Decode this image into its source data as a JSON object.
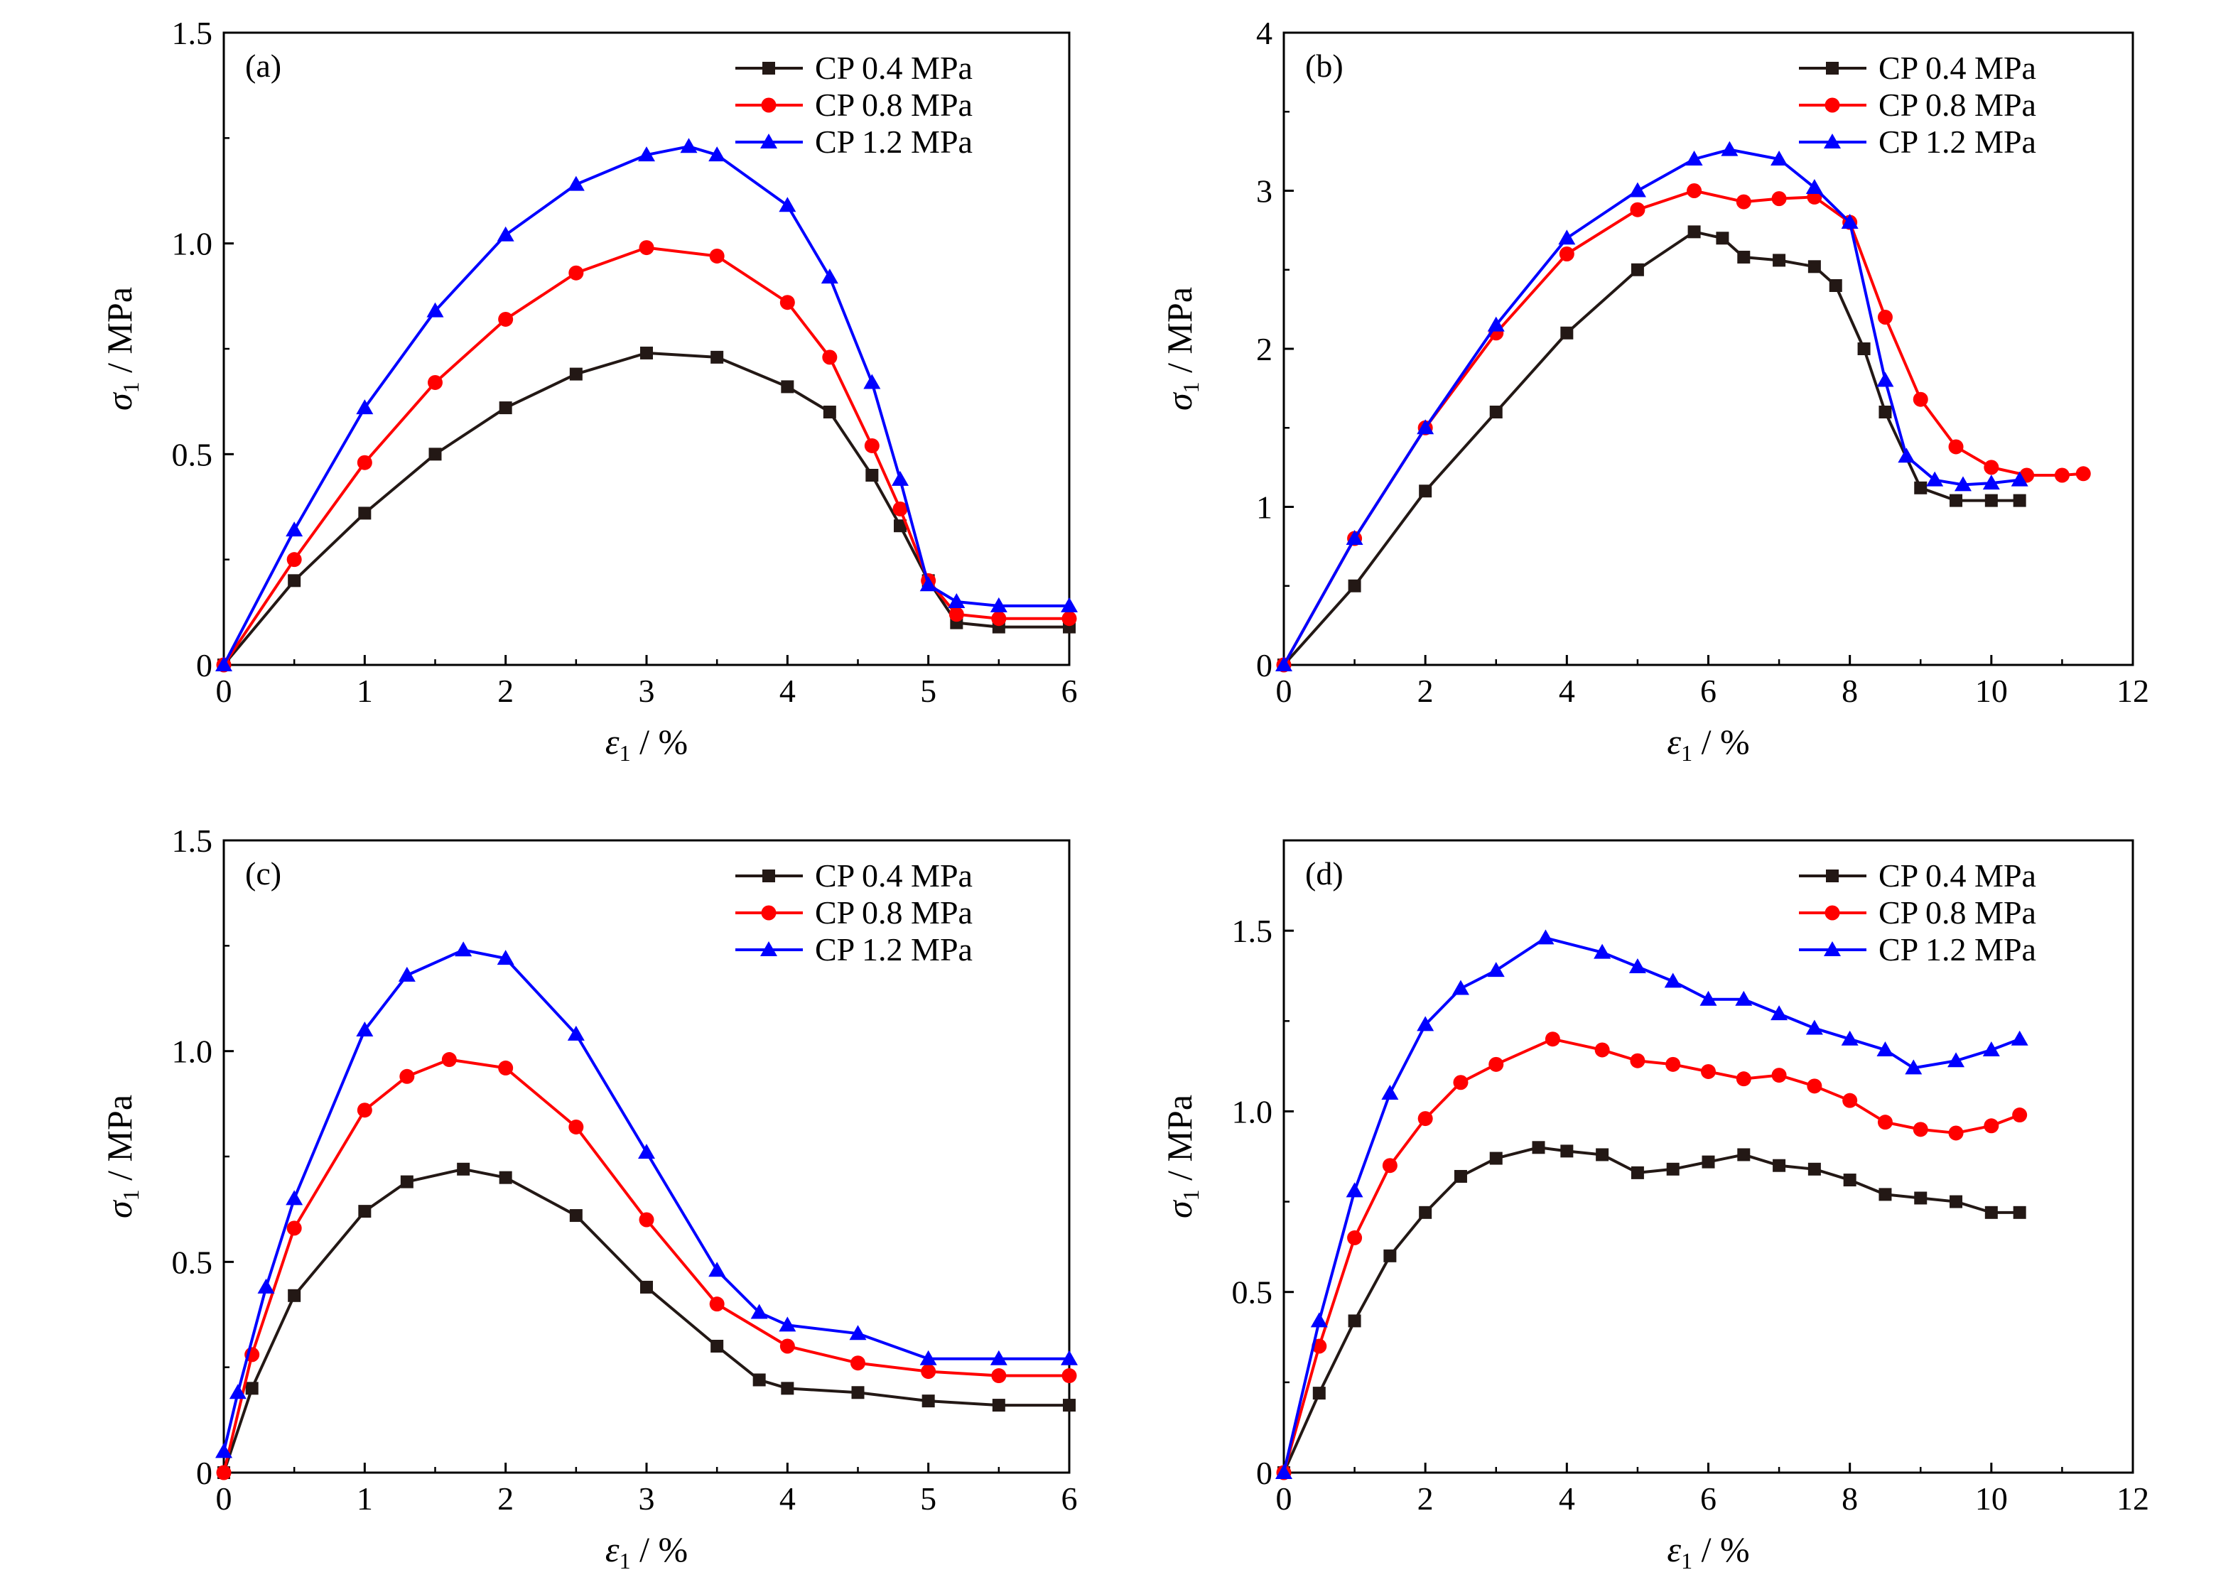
{
  "figure": {
    "background": "#ffffff"
  },
  "series_styles": [
    {
      "name": "CP 0.4 MPa",
      "color": "#231815",
      "marker": "square"
    },
    {
      "name": "CP 0.8 MPa",
      "color": "#ff0000",
      "marker": "circle"
    },
    {
      "name": "CP 1.2 MPa",
      "color": "#0000ff",
      "marker": "triangle"
    }
  ],
  "chart_data": [
    {
      "type": "line",
      "panel": "(a)",
      "xlabel": {
        "symbol": "ε",
        "sub": "1",
        "unit": " / %"
      },
      "ylabel": {
        "symbol": "σ",
        "sub": "1",
        "unit": " / MPa"
      },
      "xlim": [
        0,
        6
      ],
      "ylim": [
        0,
        1.5
      ],
      "xticks": [
        0,
        1,
        2,
        3,
        4,
        5,
        6
      ],
      "xtick_labels": [
        "0",
        "1",
        "2",
        "3",
        "4",
        "5",
        "6"
      ],
      "yticks": [
        0,
        0.5,
        1.0,
        1.5
      ],
      "ytick_labels": [
        "0",
        "0.5",
        "1.0",
        "1.5"
      ],
      "legend": "top-right",
      "grid": false,
      "series": [
        {
          "name": "CP 0.4 MPa",
          "x": [
            0,
            0.5,
            1,
            1.5,
            2,
            2.5,
            3,
            3.5,
            4,
            4.3,
            4.6,
            4.8,
            5,
            5.2,
            5.5,
            6
          ],
          "y": [
            0,
            0.2,
            0.36,
            0.5,
            0.61,
            0.69,
            0.74,
            0.73,
            0.66,
            0.6,
            0.45,
            0.33,
            0.2,
            0.1,
            0.09,
            0.09
          ]
        },
        {
          "name": "CP 0.8 MPa",
          "x": [
            0,
            0.5,
            1,
            1.5,
            2,
            2.5,
            3,
            3.5,
            4,
            4.3,
            4.6,
            4.8,
            5,
            5.2,
            5.5,
            6
          ],
          "y": [
            0,
            0.25,
            0.48,
            0.67,
            0.82,
            0.93,
            0.99,
            0.97,
            0.86,
            0.73,
            0.52,
            0.37,
            0.2,
            0.12,
            0.11,
            0.11
          ]
        },
        {
          "name": "CP 1.2 MPa",
          "x": [
            0,
            0.5,
            1,
            1.5,
            2,
            2.5,
            3,
            3.3,
            3.5,
            4,
            4.3,
            4.6,
            4.8,
            5,
            5.2,
            5.5,
            6
          ],
          "y": [
            0,
            0.32,
            0.61,
            0.84,
            1.02,
            1.14,
            1.21,
            1.23,
            1.21,
            1.09,
            0.92,
            0.67,
            0.44,
            0.19,
            0.15,
            0.14,
            0.14
          ]
        }
      ]
    },
    {
      "type": "line",
      "panel": "(b)",
      "xlabel": {
        "symbol": "ε",
        "sub": "1",
        "unit": " / %"
      },
      "ylabel": {
        "symbol": "σ",
        "sub": "1",
        "unit": " / MPa"
      },
      "xlim": [
        0,
        12
      ],
      "ylim": [
        0,
        4
      ],
      "xticks": [
        0,
        2,
        4,
        6,
        8,
        10,
        12
      ],
      "xtick_labels": [
        "0",
        "2",
        "4",
        "6",
        "8",
        "10",
        "12"
      ],
      "yticks": [
        0,
        1,
        2,
        3,
        4
      ],
      "ytick_labels": [
        "0",
        "1",
        "2",
        "3",
        "4"
      ],
      "legend": "top-right",
      "grid": false,
      "series": [
        {
          "name": "CP 0.4 MPa",
          "x": [
            0,
            1,
            2,
            3,
            4,
            5,
            5.8,
            6.2,
            6.5,
            7,
            7.5,
            7.8,
            8.2,
            8.5,
            9,
            9.5,
            10,
            10.4
          ],
          "y": [
            0,
            0.5,
            1.1,
            1.6,
            2.1,
            2.5,
            2.74,
            2.7,
            2.58,
            2.56,
            2.52,
            2.4,
            2.0,
            1.6,
            1.12,
            1.04,
            1.04,
            1.04
          ]
        },
        {
          "name": "CP 0.8 MPa",
          "x": [
            0,
            1,
            2,
            3,
            4,
            5,
            5.8,
            6.5,
            7,
            7.5,
            8,
            8.5,
            9,
            9.5,
            10,
            10.5,
            11,
            11.3
          ],
          "y": [
            0,
            0.8,
            1.5,
            2.1,
            2.6,
            2.88,
            3.0,
            2.93,
            2.95,
            2.96,
            2.8,
            2.2,
            1.68,
            1.38,
            1.25,
            1.2,
            1.2,
            1.21
          ]
        },
        {
          "name": "CP 1.2 MPa",
          "x": [
            0,
            1,
            2,
            3,
            4,
            5,
            5.8,
            6.3,
            7,
            7.5,
            8,
            8.5,
            8.8,
            9.2,
            9.6,
            10,
            10.4
          ],
          "y": [
            0,
            0.8,
            1.5,
            2.15,
            2.7,
            3.0,
            3.2,
            3.26,
            3.2,
            3.02,
            2.8,
            1.8,
            1.32,
            1.17,
            1.14,
            1.15,
            1.17
          ]
        }
      ]
    },
    {
      "type": "line",
      "panel": "(c)",
      "xlabel": {
        "symbol": "ε",
        "sub": "1",
        "unit": " / %"
      },
      "ylabel": {
        "symbol": "σ",
        "sub": "1",
        "unit": " / MPa"
      },
      "xlim": [
        0,
        6
      ],
      "ylim": [
        0,
        1.5
      ],
      "xticks": [
        0,
        1,
        2,
        3,
        4,
        5,
        6
      ],
      "xtick_labels": [
        "0",
        "1",
        "2",
        "3",
        "4",
        "5",
        "6"
      ],
      "yticks": [
        0,
        0.5,
        1.0,
        1.5
      ],
      "ytick_labels": [
        "0",
        "0.5",
        "1.0",
        "1.5"
      ],
      "legend": "top-right",
      "grid": false,
      "series": [
        {
          "name": "CP 0.4 MPa",
          "x": [
            0,
            0.2,
            0.5,
            1,
            1.3,
            1.7,
            2,
            2.5,
            3,
            3.5,
            3.8,
            4,
            4.5,
            5,
            5.5,
            6
          ],
          "y": [
            0,
            0.2,
            0.42,
            0.62,
            0.69,
            0.72,
            0.7,
            0.61,
            0.44,
            0.3,
            0.22,
            0.2,
            0.19,
            0.17,
            0.16,
            0.16
          ]
        },
        {
          "name": "CP 0.8 MPa",
          "x": [
            0,
            0.2,
            0.5,
            1,
            1.3,
            1.6,
            2,
            2.5,
            3,
            3.5,
            4,
            4.5,
            5,
            5.5,
            6
          ],
          "y": [
            0,
            0.28,
            0.58,
            0.86,
            0.94,
            0.98,
            0.96,
            0.82,
            0.6,
            0.4,
            0.3,
            0.26,
            0.24,
            0.23,
            0.23
          ]
        },
        {
          "name": "CP 1.2 MPa",
          "x": [
            0,
            0.1,
            0.3,
            0.5,
            1,
            1.3,
            1.7,
            2,
            2.5,
            3,
            3.5,
            3.8,
            4,
            4.5,
            5,
            5.5,
            6
          ],
          "y": [
            0.05,
            0.19,
            0.44,
            0.65,
            1.05,
            1.18,
            1.24,
            1.22,
            1.04,
            0.76,
            0.48,
            0.38,
            0.35,
            0.33,
            0.27,
            0.27,
            0.27
          ]
        }
      ]
    },
    {
      "type": "line",
      "panel": "(d)",
      "xlabel": {
        "symbol": "ε",
        "sub": "1",
        "unit": " / %"
      },
      "ylabel": {
        "symbol": "σ",
        "sub": "1",
        "unit": " / MPa"
      },
      "xlim": [
        0,
        12
      ],
      "ylim": [
        0,
        1.75
      ],
      "xticks": [
        0,
        2,
        4,
        6,
        8,
        10,
        12
      ],
      "xtick_labels": [
        "0",
        "2",
        "4",
        "6",
        "8",
        "10",
        "12"
      ],
      "yticks": [
        0,
        0.5,
        1.0,
        1.5
      ],
      "ytick_labels": [
        "0",
        "0.5",
        "1.0",
        "1.5"
      ],
      "legend": "top-right",
      "grid": false,
      "series": [
        {
          "name": "CP 0.4 MPa",
          "x": [
            0,
            0.5,
            1,
            1.5,
            2,
            2.5,
            3,
            3.6,
            4,
            4.5,
            5,
            5.5,
            6,
            6.5,
            7,
            7.5,
            8,
            8.5,
            9,
            9.5,
            10,
            10.4
          ],
          "y": [
            0,
            0.22,
            0.42,
            0.6,
            0.72,
            0.82,
            0.87,
            0.9,
            0.89,
            0.88,
            0.83,
            0.84,
            0.86,
            0.88,
            0.85,
            0.84,
            0.81,
            0.77,
            0.76,
            0.75,
            0.72,
            0.72
          ]
        },
        {
          "name": "CP 0.8 MPa",
          "x": [
            0,
            0.5,
            1,
            1.5,
            2,
            2.5,
            3,
            3.8,
            4.5,
            5,
            5.5,
            6,
            6.5,
            7,
            7.5,
            8,
            8.5,
            9,
            9.5,
            10,
            10.4
          ],
          "y": [
            0,
            0.35,
            0.65,
            0.85,
            0.98,
            1.08,
            1.13,
            1.2,
            1.17,
            1.14,
            1.13,
            1.11,
            1.09,
            1.1,
            1.07,
            1.03,
            0.97,
            0.95,
            0.94,
            0.96,
            0.99
          ]
        },
        {
          "name": "CP 1.2 MPa",
          "x": [
            0,
            0.5,
            1,
            1.5,
            2,
            2.5,
            3,
            3.7,
            4.5,
            5,
            5.5,
            6,
            6.5,
            7,
            7.5,
            8,
            8.5,
            8.9,
            9.5,
            10,
            10.4
          ],
          "y": [
            0,
            0.42,
            0.78,
            1.05,
            1.24,
            1.34,
            1.39,
            1.48,
            1.44,
            1.4,
            1.36,
            1.31,
            1.31,
            1.27,
            1.23,
            1.2,
            1.17,
            1.12,
            1.14,
            1.17,
            1.2
          ]
        }
      ]
    }
  ]
}
